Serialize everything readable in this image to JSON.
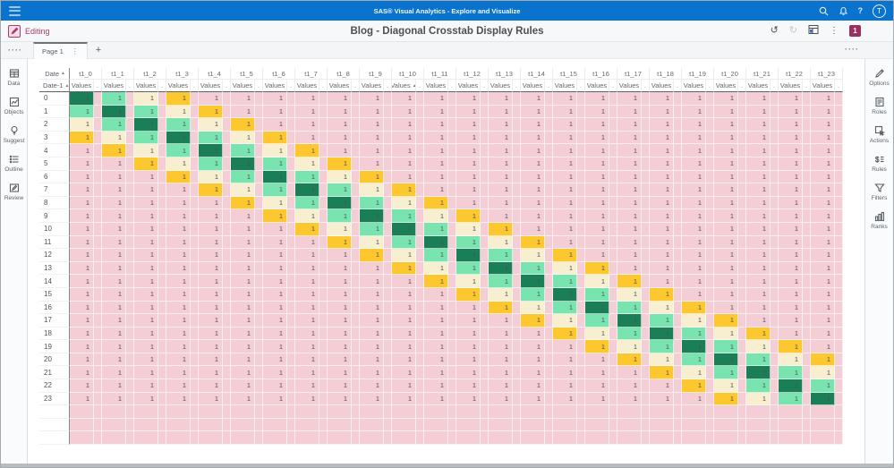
{
  "banner": {
    "title": "SAS® Visual Analytics - Explore and Visualize",
    "avatar_initial": "T"
  },
  "toolbar": {
    "mode_label": "Editing",
    "report_title": "Blog - Diagonal Crosstab Display Rules",
    "badge_count": "1"
  },
  "tab_bar": {
    "page_tab_label": "Page 1",
    "add_tab_label": "+"
  },
  "glyphs": {
    "undo": "↺",
    "redo": "↻",
    "kebab": "⋮",
    "tab_kebab": "⋮",
    "dots_menu": "····",
    "help": "?"
  },
  "left_sidebar": {
    "items": [
      {
        "label": "Data"
      },
      {
        "label": "Objects"
      },
      {
        "label": "Suggest"
      },
      {
        "label": "Outline"
      },
      {
        "label": "Review"
      }
    ]
  },
  "right_sidebar": {
    "items": [
      {
        "label": "Options"
      },
      {
        "label": "Roles"
      },
      {
        "label": "Actions"
      },
      {
        "label": "Rules"
      },
      {
        "label": "Filters"
      },
      {
        "label": "Ranks"
      }
    ]
  },
  "crosstab": {
    "corner_top_label": "Date",
    "corner_bottom_label": "Date-1",
    "sort_ascending_glyph": "▲",
    "measure_label": "Values",
    "separator_header": ".",
    "sorted_measure_group": "t1_10",
    "column_groups": [
      "t1_0",
      "t1_1",
      "t1_2",
      "t1_3",
      "t1_4",
      "t1_5",
      "t1_6",
      "t1_7",
      "t1_8",
      "t1_9",
      "t1_10",
      "t1_11",
      "t1_12",
      "t1_13",
      "t1_14",
      "t1_15",
      "t1_16",
      "t1_17",
      "t1_18",
      "t1_19",
      "t1_20",
      "t1_21",
      "t1_22",
      "t1_23"
    ],
    "row_labels": [
      "0",
      "1",
      "2",
      "3",
      "4",
      "5",
      "6",
      "7",
      "8",
      "9",
      "10",
      "11",
      "12",
      "13",
      "14",
      "15",
      "16",
      "17",
      "18",
      "19",
      "20",
      "21",
      "22",
      "23"
    ],
    "cell_value": "1",
    "display_rules": {
      "offset_colors": [
        "#1a7e57",
        "#79e4b0",
        "#f8eed0",
        "#fdc72f"
      ],
      "default_color": "#f4ced4"
    },
    "phantom_rows": 3
  }
}
